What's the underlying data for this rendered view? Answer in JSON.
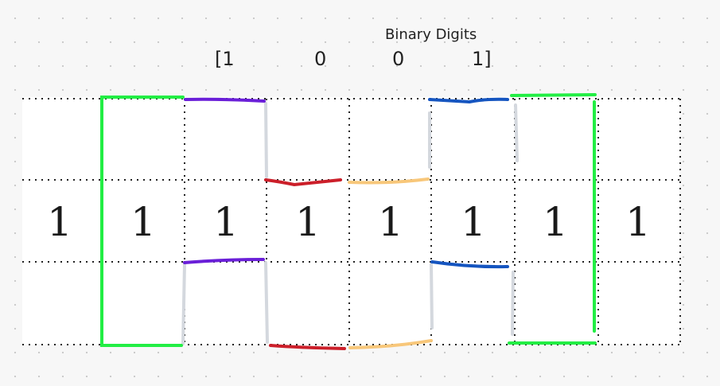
{
  "diagram": {
    "title": "Binary Digits",
    "digits": [
      "[1",
      "0",
      "0",
      "1]"
    ],
    "cells": [
      "1",
      "1",
      "1",
      "1",
      "1",
      "1",
      "1",
      "1"
    ],
    "colors": {
      "green": "#22ee44",
      "purple": "#6a1fd8",
      "red": "#cc1f2a",
      "yellow": "#f8c77a",
      "blue": "#1555c0",
      "grey": "#d4d8de",
      "gridline": "#222222"
    }
  }
}
